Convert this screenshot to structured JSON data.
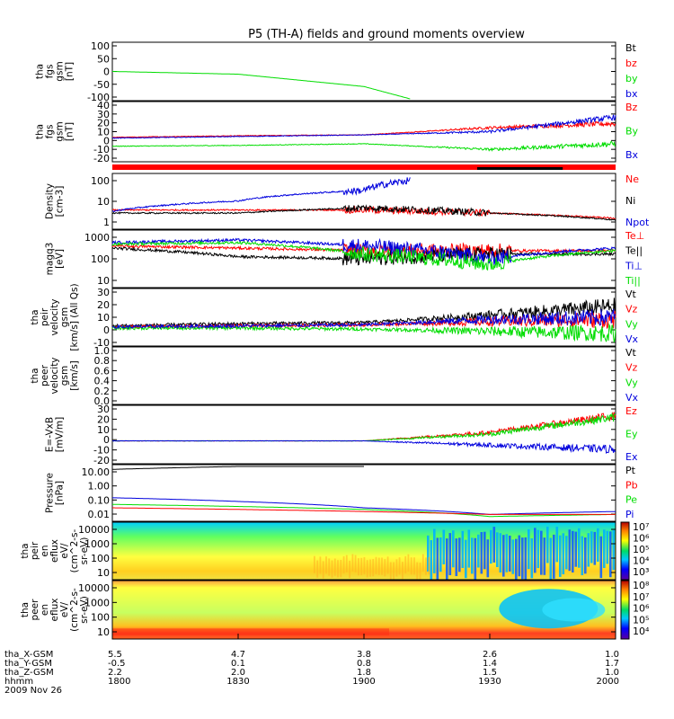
{
  "title": "P5 (TH-A) fields and ground moments overview",
  "colors": {
    "black": "#000000",
    "red": "#ff0000",
    "green": "#00dd00",
    "blue": "#0000dd"
  },
  "panels": [
    {
      "id": "fgs-gsm",
      "ylabel": [
        "tha",
        "fgs",
        "gsm",
        "[nT]"
      ],
      "ticks": [
        "100",
        "50",
        "0",
        "-50",
        "-100"
      ],
      "legend": [
        [
          "Bt",
          "black"
        ],
        [
          "bz",
          "red"
        ],
        [
          "by",
          "green"
        ],
        [
          "bx",
          "blue"
        ]
      ]
    },
    {
      "id": "fgs-dsl",
      "ylabel": [
        "tha",
        "fgs",
        "gsm",
        "[nT]"
      ],
      "ticks": [
        "40",
        "30",
        "20",
        "10",
        "0",
        "-10",
        "-20"
      ],
      "legend": [
        [
          "Bz",
          "red"
        ],
        [
          "By",
          "green"
        ],
        [
          "Bx",
          "blue"
        ]
      ]
    },
    {
      "id": "density",
      "ylabel": [
        "Density",
        "[cm-3]"
      ],
      "ticks": [
        "100",
        "10",
        "1"
      ],
      "legend": [
        [
          "Ne",
          "red"
        ],
        [
          "Ni",
          "black"
        ],
        [
          "Npot",
          "blue"
        ]
      ]
    },
    {
      "id": "temperature",
      "ylabel": [
        "magq3",
        "[eV]"
      ],
      "ticks": [
        "1000",
        "100",
        "10"
      ],
      "legend": [
        [
          "Te⊥",
          "red"
        ],
        [
          "Te||",
          "black"
        ],
        [
          "Ti⊥",
          "blue"
        ],
        [
          "Ti||",
          "green"
        ]
      ]
    },
    {
      "id": "peir-velocity",
      "ylabel": [
        "tha",
        "peir",
        "velocity",
        "gsm",
        "[km/s] (All Qs)"
      ],
      "ticks": [
        "30",
        "20",
        "10",
        "0",
        "-10"
      ],
      "legend": [
        [
          "Vt",
          "black"
        ],
        [
          "Vz",
          "red"
        ],
        [
          "Vy",
          "green"
        ],
        [
          "Vx",
          "blue"
        ]
      ]
    },
    {
      "id": "peer-velocity",
      "ylabel": [
        "tha",
        "peer",
        "velocity",
        "gsm",
        "[km/s]"
      ],
      "ticks": [
        "1.0",
        "0.8",
        "0.6",
        "0.4",
        "0.2",
        "0.0"
      ],
      "legend": [
        [
          "Vt",
          "black"
        ],
        [
          "Vz",
          "red"
        ],
        [
          "Vy",
          "green"
        ],
        [
          "Vx",
          "blue"
        ]
      ]
    },
    {
      "id": "efield",
      "ylabel": [
        "E=-VxB",
        "[mV/m]"
      ],
      "ticks": [
        "30",
        "20",
        "10",
        "0",
        "-10",
        "-20"
      ],
      "legend": [
        [
          "Ez",
          "red"
        ],
        [
          "Ey",
          "green"
        ],
        [
          "Ex",
          "blue"
        ]
      ]
    },
    {
      "id": "pressure",
      "ylabel": [
        "Pressure",
        "[nPa]"
      ],
      "ticks": [
        "10.00",
        "1.00",
        "0.10",
        "0.01"
      ],
      "legend": [
        [
          "Pt",
          "black"
        ],
        [
          "Pb",
          "red"
        ],
        [
          "Pe",
          "green"
        ],
        [
          "Pi",
          "blue"
        ]
      ]
    },
    {
      "id": "peir-spectrogram",
      "ylabel": [
        "tha",
        "peir",
        "en",
        "eflux",
        "eV/",
        "(cm^2-s-",
        "sr-eV)"
      ],
      "ticks": [
        "10000",
        "1000",
        "100",
        "10"
      ],
      "colorbar": [
        "10⁷",
        "10⁶",
        "10⁵",
        "10⁴",
        "10³"
      ]
    },
    {
      "id": "peer-spectrogram",
      "ylabel": [
        "tha",
        "peer",
        "en",
        "eflux",
        "eV/",
        "(cm^2-s-",
        "sr-eV)"
      ],
      "ticks": [
        "10000",
        "1000",
        "100",
        "10"
      ],
      "colorbar": [
        "10⁸",
        "10⁷",
        "10⁶",
        "10⁵",
        "10⁴"
      ]
    }
  ],
  "xaxis": {
    "rows": [
      {
        "label": "tha_X-GSM",
        "values": [
          "5.5",
          "4.7",
          "3.8",
          "2.6",
          "1.0"
        ]
      },
      {
        "label": "tha_Y-GSM",
        "values": [
          "-0.5",
          "0.1",
          "0.8",
          "1.4",
          "1.7"
        ]
      },
      {
        "label": "tha_Z-GSM",
        "values": [
          "2.2",
          "2.0",
          "1.8",
          "1.5",
          "1.0"
        ]
      },
      {
        "label": "hhmm",
        "values": [
          "1800",
          "1830",
          "1900",
          "1930",
          "2000"
        ]
      }
    ],
    "date": "2009 Nov 26"
  },
  "chart_data": {
    "type": "line",
    "title": "P5 (TH-A) fields and ground moments overview",
    "x": [
      "1800",
      "1830",
      "1900",
      "1930",
      "2000"
    ],
    "date": "2009 Nov 26",
    "panels": [
      {
        "name": "fgs gsm",
        "ylim": [
          -100,
          100
        ],
        "series": [
          {
            "name": "by",
            "x": [
              "1800",
              "1830",
              "1900",
              "1911"
            ],
            "values": [
              0,
              -10,
              -55,
              -100
            ]
          }
        ]
      },
      {
        "name": "fgs gsm",
        "ylim": [
          -25,
          45
        ],
        "series": [
          {
            "name": "Bz",
            "x": [
              "1800",
              "1830",
              "1900",
              "1930",
              "2000"
            ],
            "values": [
              3,
              5,
              6,
              15,
              20
            ]
          },
          {
            "name": "By",
            "x": [
              "1800",
              "1830",
              "1900",
              "1930",
              "2000"
            ],
            "values": [
              -8,
              -7,
              -5,
              -12,
              -5
            ]
          },
          {
            "name": "Bx",
            "x": [
              "1800",
              "1830",
              "1900",
              "1930",
              "2000"
            ],
            "values": [
              2,
              4,
              6,
              10,
              28
            ]
          }
        ]
      },
      {
        "name": "Density",
        "ylim": [
          0.3,
          300
        ],
        "scale": "log",
        "series": [
          {
            "name": "Ne",
            "x": [
              "1800",
              "1830",
              "1900",
              "1930",
              "2000"
            ],
            "values": [
              3,
              3,
              3,
              2,
              1
            ]
          },
          {
            "name": "Ni",
            "x": [
              "1800",
              "1830",
              "1900",
              "1930",
              "2000"
            ],
            "values": [
              2,
              2,
              4,
              2,
              0.8
            ]
          },
          {
            "name": "Npot",
            "x": [
              "1800",
              "1830",
              "1900",
              "1911"
            ],
            "values": [
              2.5,
              10,
              40,
              150
            ]
          }
        ]
      },
      {
        "name": "Temperature",
        "ylim": [
          10,
          1000
        ],
        "scale": "log",
        "series": [
          {
            "name": "Te⊥",
            "x": [
              "1800",
              "1830",
              "1900",
              "1930",
              "2000"
            ],
            "values": [
              300,
              250,
              200,
              200,
              200
            ]
          },
          {
            "name": "Te||",
            "x": [
              "1800",
              "1830",
              "1900",
              "1930",
              "2000"
            ],
            "values": [
              250,
              120,
              100,
              150,
              150
            ]
          },
          {
            "name": "Ti⊥",
            "x": [
              "1800",
              "1830",
              "1900",
              "1930",
              "2000"
            ],
            "values": [
              400,
              500,
              300,
              100,
              250
            ]
          },
          {
            "name": "Ti||",
            "x": [
              "1800",
              "1830",
              "1900",
              "1930",
              "2000"
            ],
            "values": [
              350,
              400,
              150,
              60,
              200
            ]
          }
        ]
      },
      {
        "name": "peir velocity",
        "ylim": [
          -15,
          35
        ],
        "series": [
          {
            "name": "Vt",
            "x": [
              "1800",
              "1830",
              "1900",
              "1930",
              "2000"
            ],
            "values": [
              2,
              4,
              5,
              12,
              20
            ]
          },
          {
            "name": "Vz",
            "x": [
              "1800",
              "1830",
              "1900",
              "1930",
              "2000"
            ],
            "values": [
              1,
              2,
              3,
              6,
              8
            ]
          },
          {
            "name": "Vy",
            "x": [
              "1800",
              "1830",
              "1900",
              "1930",
              "2000"
            ],
            "values": [
              0,
              0,
              -1,
              -3,
              -5
            ]
          },
          {
            "name": "Vx",
            "x": [
              "1800",
              "1830",
              "1900",
              "1930",
              "2000"
            ],
            "values": [
              1,
              2,
              3,
              8,
              10
            ]
          }
        ]
      },
      {
        "name": "peer velocity",
        "ylim": [
          0,
          1
        ],
        "series": []
      },
      {
        "name": "E=-VxB",
        "ylim": [
          -25,
          40
        ],
        "series": [
          {
            "name": "Ez",
            "x": [
              "1800",
              "1830",
              "1900",
              "1930",
              "2000"
            ],
            "values": [
              0,
              0,
              0,
              10,
              30
            ]
          },
          {
            "name": "Ey",
            "x": [
              "1800",
              "1830",
              "1900",
              "1930",
              "2000"
            ],
            "values": [
              0,
              0,
              0,
              8,
              28
            ]
          },
          {
            "name": "Ex",
            "x": [
              "1800",
              "1830",
              "1900",
              "1930",
              "2000"
            ],
            "values": [
              0,
              0,
              0,
              -5,
              -10
            ]
          }
        ]
      },
      {
        "name": "Pressure",
        "ylim": [
          0.01,
          15
        ],
        "scale": "log",
        "series": [
          {
            "name": "Pt",
            "x": [
              "1800",
              "1830",
              "1900"
            ],
            "values": [
              10,
              15,
              15
            ]
          },
          {
            "name": "Pi",
            "x": [
              "1800",
              "1830",
              "1900",
              "1930",
              "2000"
            ],
            "values": [
              0.2,
              0.12,
              0.05,
              0.02,
              0.03
            ]
          },
          {
            "name": "Pe",
            "x": [
              "1800",
              "1830",
              "1900",
              "1930",
              "2000"
            ],
            "values": [
              0.08,
              0.06,
              0.04,
              0.015,
              0.02
            ]
          },
          {
            "name": "Pb",
            "x": [
              "1800",
              "1830",
              "1900",
              "1930",
              "2000"
            ],
            "values": [
              0.05,
              0.04,
              0.03,
              0.02,
              0.02
            ]
          }
        ]
      }
    ]
  }
}
